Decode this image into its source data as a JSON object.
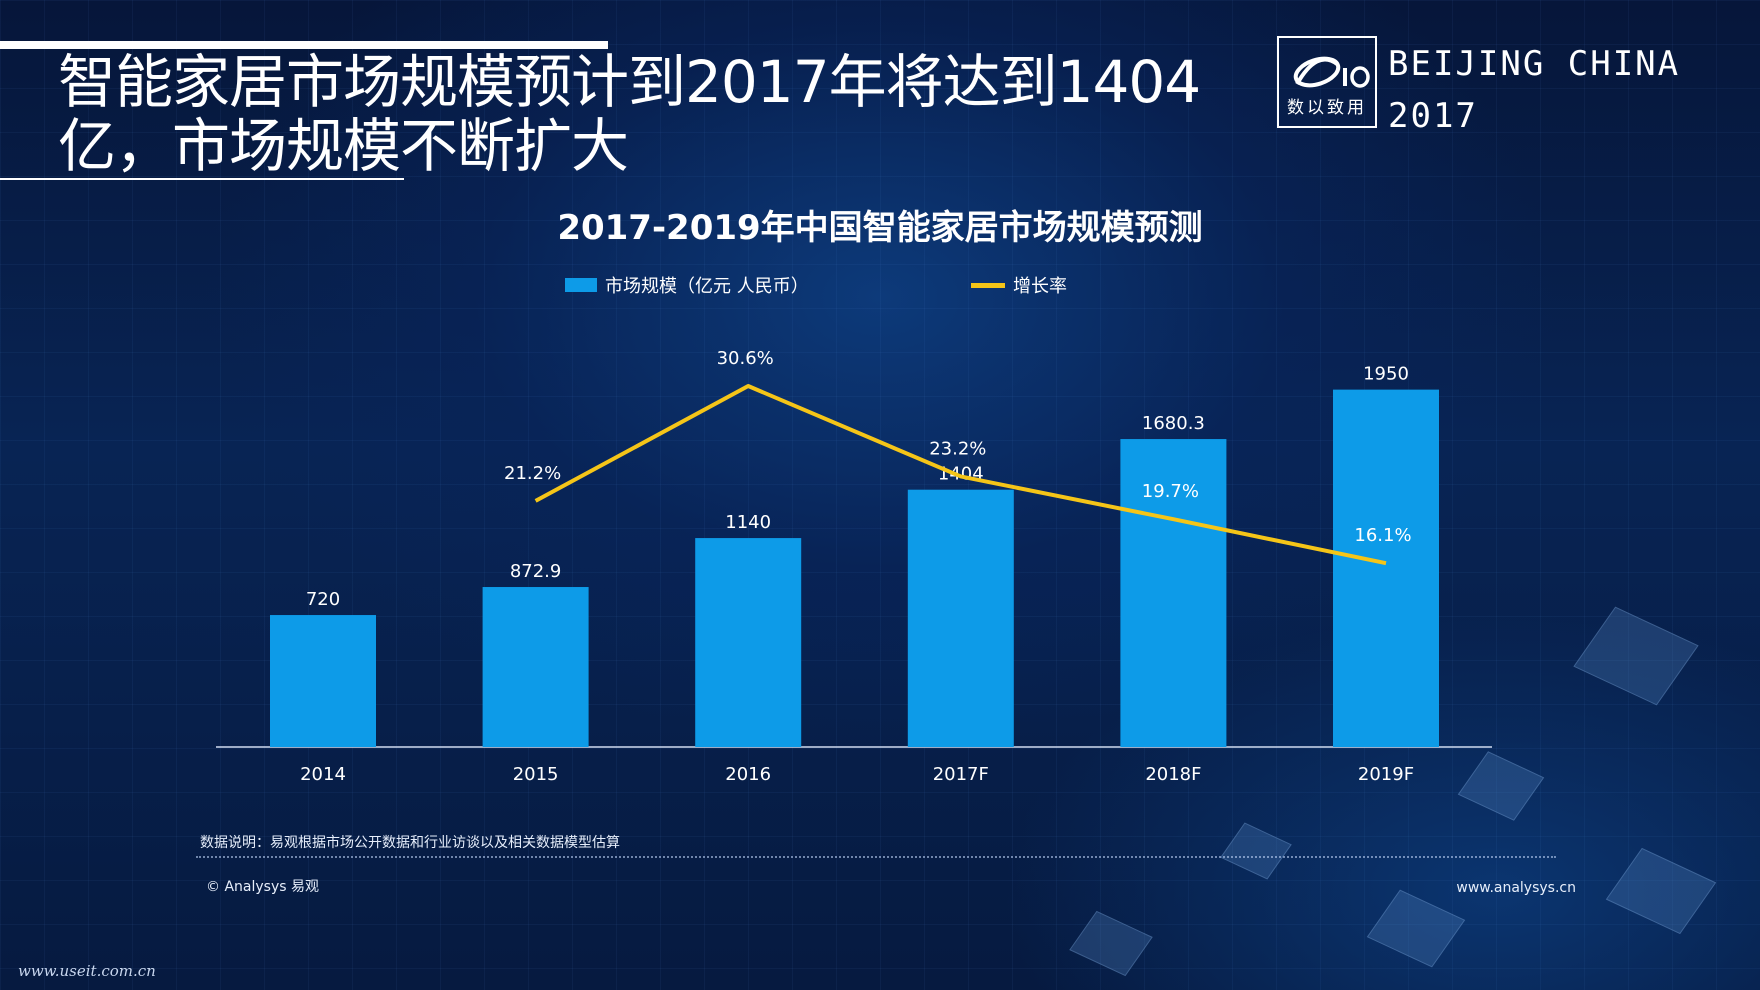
{
  "slide": {
    "headline": "智能家居市场规模预计到2017年将达到1404亿，市场规模不断扩大",
    "logo_text": "数以致用",
    "event_line1": "BEIJING CHINA",
    "event_line2": "2017"
  },
  "chart_data": {
    "type": "bar",
    "title": "2017-2019年中国智能家居市场规模预测",
    "categories": [
      "2014",
      "2015",
      "2016",
      "2017F",
      "2018F",
      "2019F"
    ],
    "series": [
      {
        "name": "市场规模（亿元 人民币）",
        "type": "bar",
        "values": [
          720,
          872.9,
          1140,
          1404,
          1680.3,
          1950
        ],
        "labels": [
          "720",
          "872.9",
          "1140",
          "1404",
          "1680.3",
          "1950"
        ],
        "color": "#0d9be8"
      },
      {
        "name": "增长率",
        "type": "line",
        "values": [
          null,
          21.2,
          30.6,
          23.2,
          19.7,
          16.1
        ],
        "labels": [
          "",
          "21.2%",
          "30.6%",
          "23.2%",
          "19.7%",
          "16.1%"
        ],
        "color": "#f5c518"
      }
    ],
    "ylim_bar": [
      0,
      2000
    ],
    "ylim_rate": [
      0,
      36
    ],
    "legend_position": "top",
    "grid": false
  },
  "footer": {
    "note": "数据说明：易观根据市场公开数据和行业访谈以及相关数据模型估算",
    "copyright": "© Analysys 易观",
    "website": "www.analysys.cn",
    "watermark": "www.useit.com.cn"
  }
}
